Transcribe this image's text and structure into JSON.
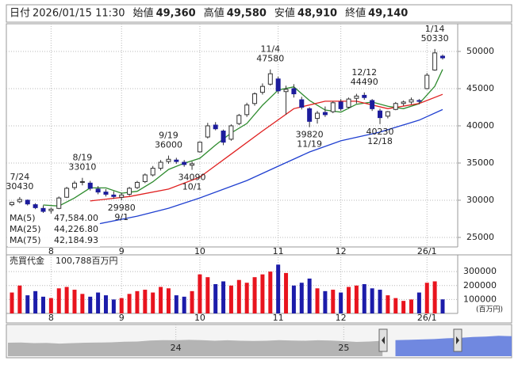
{
  "header": {
    "items": [
      {
        "label": "日付",
        "value": "2026/01/15 11:30",
        "color": "#000000"
      },
      {
        "label": "始値",
        "value": "49,360",
        "color": "#000000"
      },
      {
        "label": "高値",
        "value": "49,580",
        "color": "#c00000"
      },
      {
        "label": "安値",
        "value": "48,910",
        "color": "#008000"
      },
      {
        "label": "終値",
        "value": "49,140",
        "color": "#000000"
      }
    ]
  },
  "chart_data": [
    {
      "type": "candlestick",
      "categories": [
        null,
        null,
        null,
        null,
        null,
        "8",
        null,
        null,
        null,
        null,
        null,
        null,
        null,
        null,
        "9",
        null,
        null,
        null,
        null,
        null,
        null,
        null,
        null,
        null,
        "10",
        null,
        null,
        null,
        null,
        null,
        null,
        null,
        null,
        null,
        "11",
        null,
        null,
        null,
        null,
        null,
        null,
        null,
        "12",
        null,
        null,
        null,
        null,
        null,
        null,
        null,
        null,
        null,
        null,
        "26/1",
        null,
        null
      ],
      "open": [
        29400,
        29800,
        30000,
        29400,
        28900,
        28600,
        28900,
        30400,
        31700,
        32400,
        32300,
        31500,
        31100,
        30700,
        30400,
        30800,
        31700,
        32500,
        33400,
        34300,
        35200,
        35400,
        35100,
        34700,
        36500,
        38500,
        40100,
        39300,
        38200,
        40300,
        41500,
        43000,
        44500,
        45600,
        46300,
        44600,
        45000,
        43500,
        42300,
        41000,
        41800,
        41900,
        43200,
        42500,
        43700,
        44100,
        43400,
        42000,
        41300,
        42200,
        43000,
        43200,
        43400,
        45000,
        47500,
        49360
      ],
      "high": [
        29800,
        30430,
        30100,
        29600,
        29300,
        29000,
        30500,
        31800,
        32600,
        33010,
        32600,
        31900,
        31500,
        31200,
        31000,
        31800,
        32600,
        33600,
        34600,
        35400,
        36000,
        35700,
        35400,
        35200,
        37900,
        40400,
        40500,
        39500,
        40200,
        41600,
        43100,
        44500,
        45700,
        47580,
        46600,
        45400,
        45600,
        43900,
        42500,
        42000,
        42600,
        43300,
        43600,
        43800,
        44300,
        44490,
        43600,
        42300,
        42000,
        43200,
        43400,
        43800,
        43600,
        47100,
        50330,
        49580
      ],
      "low": [
        29200,
        29600,
        29300,
        28800,
        28300,
        28200,
        28800,
        30300,
        31400,
        32000,
        31300,
        30800,
        30500,
        30200,
        29980,
        30600,
        31500,
        32300,
        33200,
        34000,
        34900,
        34900,
        34500,
        34090,
        36400,
        38300,
        39400,
        37400,
        38000,
        40100,
        41200,
        42700,
        44200,
        45400,
        44300,
        41500,
        43800,
        42200,
        39820,
        40300,
        41200,
        41700,
        42000,
        42300,
        43000,
        43500,
        42000,
        40230,
        41000,
        42100,
        42700,
        42900,
        42900,
        44900,
        47400,
        48910
      ],
      "close": [
        29700,
        30100,
        29500,
        29000,
        28500,
        28800,
        30300,
        31600,
        32300,
        32500,
        31600,
        31100,
        30800,
        30500,
        30700,
        31600,
        32400,
        33400,
        34300,
        35100,
        35500,
        35200,
        34800,
        34900,
        37800,
        40000,
        39600,
        37800,
        40000,
        41400,
        42800,
        44300,
        45300,
        47000,
        44700,
        44900,
        44300,
        42500,
        40600,
        41700,
        41500,
        43100,
        42300,
        43600,
        44000,
        43800,
        42300,
        41100,
        41900,
        43000,
        43200,
        43500,
        43300,
        46800,
        49800,
        49140
      ],
      "up_color": "#ffffff",
      "down_color": "#1c1c9c",
      "edge_color": "#333333",
      "ylim": [
        23720,
        53720
      ],
      "yticks": [
        25000,
        30000,
        35000,
        40000,
        45000,
        50000
      ],
      "grid": true,
      "lines": [
        {
          "name": "MA(5)",
          "legend_value": "47,584.00",
          "color": "#2e8b2e",
          "x": [
            4,
            6,
            8,
            10,
            12,
            14,
            16,
            18,
            20,
            22,
            24,
            26,
            28,
            30,
            32,
            34,
            36,
            38,
            40,
            42,
            44,
            46,
            48,
            50,
            52,
            54,
            55
          ],
          "values": [
            29360,
            29220,
            30300,
            31660,
            31660,
            30940,
            31200,
            32480,
            34140,
            34980,
            35640,
            37420,
            39040,
            40320,
            42760,
            44820,
            45240,
            43400,
            42120,
            41840,
            42900,
            43200,
            42620,
            42300,
            42980,
            45320,
            47584
          ]
        },
        {
          "name": "MA(25)",
          "legend_value": "44,226.80",
          "color": "#e02020",
          "x": [
            10,
            15,
            20,
            24,
            28,
            32,
            36,
            40,
            44,
            48,
            52,
            55
          ],
          "values": [
            29900,
            30500,
            31500,
            33100,
            36200,
            39300,
            42300,
            43300,
            43300,
            42300,
            43000,
            44227
          ]
        },
        {
          "name": "MA(75)",
          "legend_value": "42,184.93",
          "color": "#1f3fd0",
          "x": [
            11,
            16,
            20,
            24,
            30,
            34,
            38,
            42,
            47,
            52,
            55
          ],
          "values": [
            26800,
            27860,
            28920,
            30300,
            32650,
            34570,
            36490,
            37990,
            39160,
            40760,
            42185
          ]
        }
      ],
      "annotations": [
        {
          "text": "7/24",
          "value": 30430
        },
        {
          "text": "8/19",
          "value": 33010
        },
        {
          "text": "9/1",
          "value": 29980
        },
        {
          "text": "9/19",
          "value": 36000
        },
        {
          "text": "10/1",
          "value": 34090
        },
        {
          "text": "11/4",
          "value": 47580
        },
        {
          "text": "11/19",
          "value": 39820
        },
        {
          "text": "12/12",
          "value": 44490
        },
        {
          "text": "12/18",
          "value": 40230
        },
        {
          "text": "1/14",
          "value": 50330
        }
      ]
    },
    {
      "type": "bar",
      "title": "売買代金",
      "value_label": "100,788百万円",
      "unit": "(百万円)",
      "categories": [
        null,
        null,
        null,
        null,
        null,
        "8",
        null,
        null,
        null,
        null,
        null,
        null,
        null,
        null,
        "9",
        null,
        null,
        null,
        null,
        null,
        null,
        null,
        null,
        null,
        "10",
        null,
        null,
        null,
        null,
        null,
        null,
        null,
        null,
        null,
        "11",
        null,
        null,
        null,
        null,
        null,
        null,
        null,
        "12",
        null,
        null,
        null,
        null,
        null,
        null,
        null,
        null,
        null,
        null,
        "26/1",
        null,
        null
      ],
      "values": [
        150000,
        200000,
        130000,
        160000,
        120000,
        110000,
        180000,
        190000,
        170000,
        140000,
        120000,
        150000,
        130000,
        100000,
        110000,
        140000,
        160000,
        170000,
        150000,
        190000,
        180000,
        130000,
        120000,
        160000,
        280000,
        260000,
        210000,
        230000,
        200000,
        240000,
        220000,
        260000,
        280000,
        300000,
        350000,
        290000,
        200000,
        220000,
        250000,
        180000,
        160000,
        170000,
        150000,
        190000,
        200000,
        210000,
        180000,
        170000,
        130000,
        110000,
        90000,
        100000,
        150000,
        220000,
        230000,
        100788
      ],
      "up_color": "#e8141e",
      "down_color": "#1c1caa",
      "ylim": [
        0,
        420000
      ],
      "yticks": [
        100000,
        200000,
        300000
      ]
    },
    {
      "type": "area",
      "categories": [
        null,
        null,
        null,
        null,
        null,
        null,
        null,
        null,
        null,
        null,
        null,
        null,
        null,
        "24",
        null,
        null,
        null,
        null,
        null,
        null,
        null,
        null,
        null,
        null,
        null,
        null,
        "25",
        null,
        null,
        null,
        null,
        null,
        null,
        null,
        null,
        null,
        null,
        null,
        null,
        null
      ],
      "values": [
        33000,
        33500,
        32000,
        32500,
        31000,
        32000,
        33000,
        33500,
        34000,
        35500,
        36000,
        38500,
        39500,
        39000,
        40000,
        39500,
        38000,
        39000,
        38000,
        37500,
        38000,
        39500,
        38500,
        38000,
        39000,
        38500,
        37000,
        35000,
        36000,
        38000,
        39500,
        40000,
        41000,
        42000,
        44000,
        45000,
        47000,
        48000,
        50000,
        49000
      ],
      "ylim": [
        0,
        70000
      ],
      "color": "#b4b4b4",
      "selected_color": "#7088e0"
    }
  ]
}
